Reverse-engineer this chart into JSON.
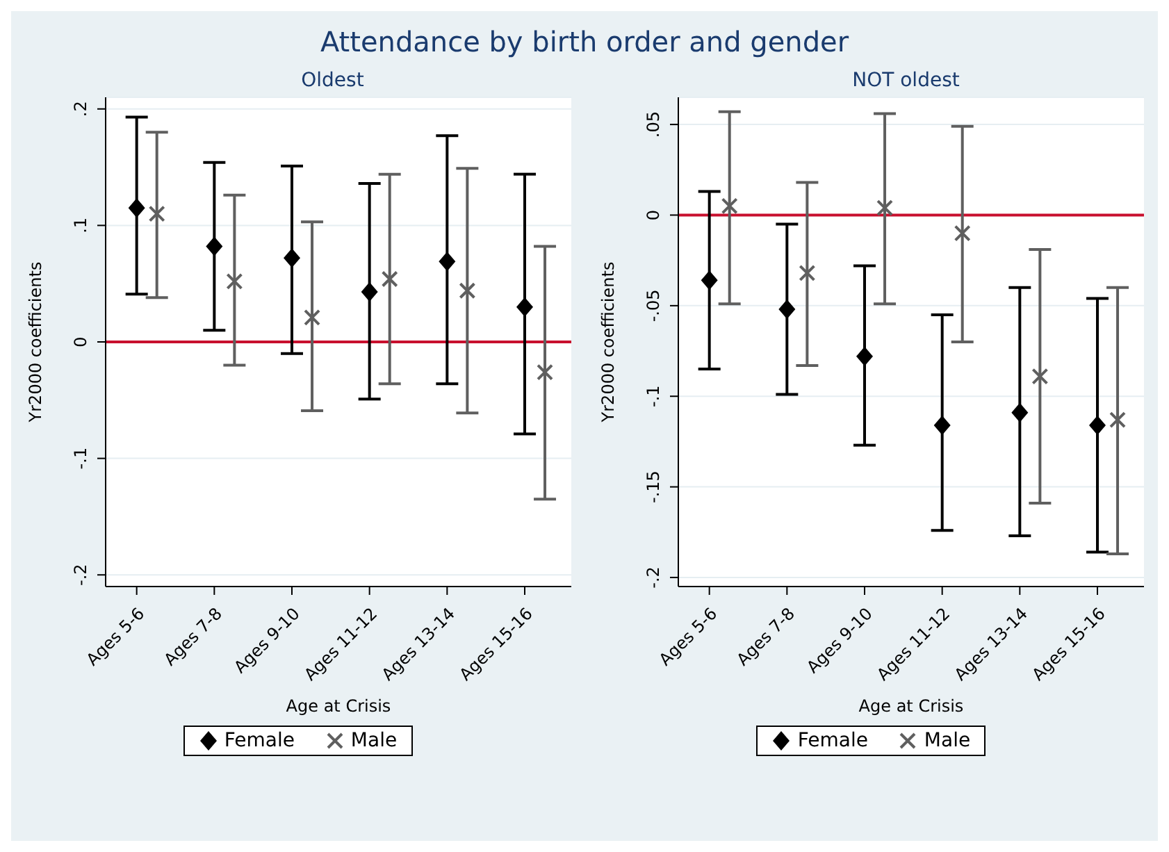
{
  "chart_data": [
    {
      "type": "scatter",
      "title": "Attendance by birth order and gender",
      "subtitle": "Oldest",
      "xlabel": "Age at Crisis",
      "ylabel": "Yr2000 coefficients",
      "categories": [
        "Ages 5-6",
        "Ages 7-8",
        "Ages 9-10",
        "Ages 11-12",
        "Ages 13-14",
        "Ages 15-16"
      ],
      "series": [
        {
          "name": "Female",
          "color": "#000000",
          "marker": "diamond",
          "values": [
            0.115,
            0.082,
            0.072,
            0.043,
            0.069,
            0.03
          ],
          "errors": [
            [
              0.041,
              0.193
            ],
            [
              0.01,
              0.154
            ],
            [
              -0.01,
              0.151
            ],
            [
              -0.049,
              0.136
            ],
            [
              -0.036,
              0.177
            ],
            [
              -0.079,
              0.144
            ]
          ]
        },
        {
          "name": "Male",
          "color": "#5f5f5f",
          "marker": "cross",
          "values": [
            0.11,
            0.052,
            0.021,
            0.054,
            0.044,
            -0.026
          ],
          "errors": [
            [
              0.038,
              0.18
            ],
            [
              -0.02,
              0.126
            ],
            [
              -0.059,
              0.103
            ],
            [
              -0.036,
              0.144
            ],
            [
              -0.061,
              0.149
            ],
            [
              -0.135,
              0.082
            ]
          ]
        }
      ],
      "ylim": [
        -0.21,
        0.21
      ],
      "yticks": [
        {
          "value": -0.2,
          "label": "-.2"
        },
        {
          "value": -0.1,
          "label": "-.1"
        },
        0,
        {
          "value": 0.1,
          "label": ".1"
        },
        {
          "value": 0.2,
          "label": ".2"
        }
      ],
      "ref_lines": [
        {
          "axis": "y",
          "value": 0,
          "color": "#c8102e"
        }
      ],
      "grid": "y",
      "legend": "bottom"
    },
    {
      "type": "scatter",
      "subtitle": "NOT oldest",
      "xlabel": "Age at Crisis",
      "ylabel": "Yr2000 coefficients",
      "categories": [
        "Ages 5-6",
        "Ages 7-8",
        "Ages 9-10",
        "Ages 11-12",
        "Ages 13-14",
        "Ages 15-16"
      ],
      "series": [
        {
          "name": "Female",
          "color": "#000000",
          "marker": "diamond",
          "values": [
            -0.036,
            -0.052,
            -0.078,
            -0.116,
            -0.109,
            -0.116
          ],
          "errors": [
            [
              -0.085,
              0.013
            ],
            [
              -0.099,
              -0.005
            ],
            [
              -0.127,
              -0.028
            ],
            [
              -0.174,
              -0.055
            ],
            [
              -0.177,
              -0.04
            ],
            [
              -0.186,
              -0.046
            ]
          ]
        },
        {
          "name": "Male",
          "color": "#5f5f5f",
          "marker": "cross",
          "values": [
            0.005,
            -0.032,
            0.004,
            -0.01,
            -0.089,
            -0.113
          ],
          "errors": [
            [
              -0.049,
              0.057
            ],
            [
              -0.083,
              0.018
            ],
            [
              -0.049,
              0.056
            ],
            [
              -0.07,
              0.049
            ],
            [
              -0.159,
              -0.019
            ],
            [
              -0.187,
              -0.04
            ]
          ]
        }
      ],
      "ylim": [
        -0.205,
        0.065
      ],
      "yticks": [
        {
          "value": -0.2,
          "label": "-.2"
        },
        {
          "value": -0.15,
          "label": "-.15"
        },
        {
          "value": -0.1,
          "label": "-.1"
        },
        {
          "value": -0.05,
          "label": "-.05"
        },
        0,
        {
          "value": 0.05,
          "label": ".05"
        }
      ],
      "ref_lines": [
        {
          "axis": "y",
          "value": 0,
          "color": "#c8102e"
        }
      ],
      "grid": "y",
      "legend": "bottom"
    }
  ]
}
